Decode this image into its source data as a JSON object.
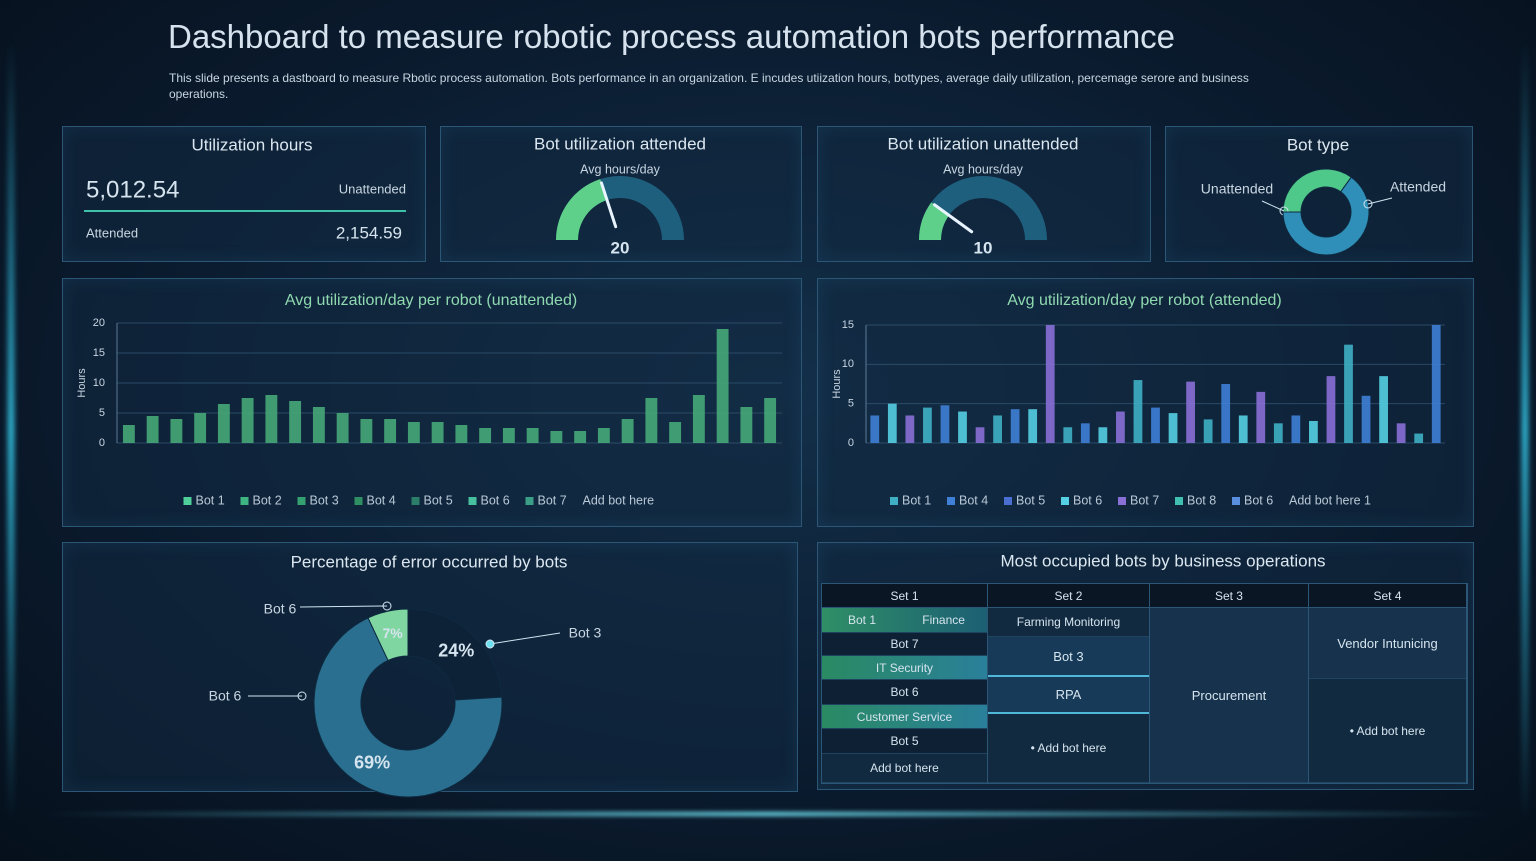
{
  "header": {
    "title": "Dashboard to measure robotic process automation bots performance",
    "subtitle": "This slide presents a dastboard to measure Rbotic process automation. Bots performance in an organization. E incudes utiization hours, bottypes, average daily utilization, percemage serore and business operations."
  },
  "utilization": {
    "title": "Utilization hours",
    "total": "5,012.54",
    "unattended_label": "Unattended",
    "attended_label": "Attended",
    "attended": "2,154.59"
  },
  "chart_data": [
    {
      "type": "gauge",
      "title": "Bot utilization attended",
      "subtitle": "Avg hours/day",
      "value": 20,
      "ylim": [
        0,
        50
      ],
      "color": "#5fd08a"
    },
    {
      "type": "gauge",
      "title": "Bot utilization unattended",
      "subtitle": "Avg hours/day",
      "value": 10,
      "ylim": [
        0,
        50
      ],
      "color": "#5fd08a"
    },
    {
      "type": "donut",
      "title": "Bot type",
      "categories": [
        "Unattended",
        "Attended"
      ],
      "values": [
        35,
        65
      ],
      "colors": [
        "#4fc98a",
        "#2f8fb8"
      ]
    },
    {
      "type": "bar",
      "title": "Avg utilization/day per robot (unattended)",
      "y_label": "Hours",
      "categories": [
        null,
        null,
        null,
        null,
        null,
        null,
        null,
        null,
        null,
        null,
        null,
        null,
        null,
        null,
        null,
        null,
        null,
        null,
        null,
        null,
        null,
        null,
        null,
        null,
        null,
        null,
        null,
        null
      ],
      "values": [
        3,
        4.5,
        4,
        5,
        6.5,
        7.5,
        8,
        7,
        6,
        5,
        4,
        4,
        3.5,
        3.5,
        3,
        2.5,
        2.5,
        2.5,
        2,
        2,
        2.5,
        4,
        7.5,
        3.5,
        8,
        19,
        6,
        7.5
      ],
      "color": "#46a878",
      "ylim": [
        0,
        20
      ],
      "yticks": [
        0,
        5,
        10,
        15,
        20
      ],
      "grid": true,
      "legend": [
        {
          "name": "Bot 1",
          "color": "#4fd09a"
        },
        {
          "name": "Bot 2",
          "color": "#3fb483"
        },
        {
          "name": "Bot 3",
          "color": "#35a070"
        },
        {
          "name": "Bot 4",
          "color": "#2f8f62"
        },
        {
          "name": "Bot 5",
          "color": "#2b7f6a"
        },
        {
          "name": "Bot 6",
          "color": "#48c0a0"
        },
        {
          "name": "Bot 7",
          "color": "#3a9f86"
        },
        {
          "name": "Add bot here"
        }
      ]
    },
    {
      "type": "bar",
      "title": "Avg utilization/day per robot (attended)",
      "y_label": "Hours",
      "categories": [
        null,
        null,
        null,
        null,
        null,
        null,
        null,
        null,
        null,
        null,
        null,
        null,
        null,
        null,
        null,
        null,
        null,
        null,
        null,
        null,
        null,
        null,
        null,
        null,
        null,
        null,
        null,
        null,
        null,
        null,
        null,
        null,
        null
      ],
      "values": [
        3.5,
        5,
        3.5,
        4.5,
        4.8,
        4,
        2,
        3.5,
        4.3,
        4.3,
        15,
        2,
        2.5,
        2,
        4,
        8,
        4.5,
        3.8,
        7.8,
        3,
        7.5,
        3.5,
        6.5,
        2.5,
        3.5,
        2.8,
        8.5,
        12.5,
        6,
        8.5,
        2.5,
        1.2,
        15
      ],
      "colors": [
        "#3f7fd6",
        "#55cfe3",
        "#8a6fd6",
        "#3fb0c4"
      ],
      "ylim": [
        0,
        15
      ],
      "yticks": [
        0,
        5,
        10,
        15
      ],
      "grid": true,
      "legend": [
        {
          "name": "Bot 1",
          "color": "#3fb0c4"
        },
        {
          "name": "Bot 4",
          "color": "#3f7fd6"
        },
        {
          "name": "Bot 5",
          "color": "#4a6fd0"
        },
        {
          "name": "Bot 6",
          "color": "#55cfe3"
        },
        {
          "name": "Bot 7",
          "color": "#8a6fd6"
        },
        {
          "name": "Bot 8",
          "color": "#3fc0b0"
        },
        {
          "name": "Bot 6",
          "color": "#5a8fe0"
        },
        {
          "name": "Add bot here 1"
        }
      ]
    },
    {
      "type": "donut",
      "title": "Percentage of error occurred by bots",
      "categories": [
        "Bot 6",
        "Bot 3",
        "Bot 6"
      ],
      "values": [
        7,
        24,
        69
      ],
      "value_labels": [
        "7%",
        "24%",
        "69%"
      ],
      "colors": [
        "#7fd6a0",
        "#0d2236",
        "#2a6f8f"
      ]
    }
  ],
  "table": {
    "title": "Most occupied bots by business operations",
    "columns": [
      {
        "header": "Set 1",
        "cells": [
          [
            "Bot 1",
            "Finance"
          ],
          "Bot 7",
          "IT Security",
          "Bot 6",
          "Customer Service",
          "Bot 5",
          "Add bot here"
        ]
      },
      {
        "header": "Set 2",
        "cells": [
          "Farming Monitoring",
          "Bot 3",
          "RPA",
          "• Add bot here"
        ]
      },
      {
        "header": "Set 3",
        "cells": [
          "Procurement"
        ]
      },
      {
        "header": "Set 4",
        "cells": [
          "Vendor Intunicing",
          "• Add bot here"
        ]
      }
    ]
  }
}
